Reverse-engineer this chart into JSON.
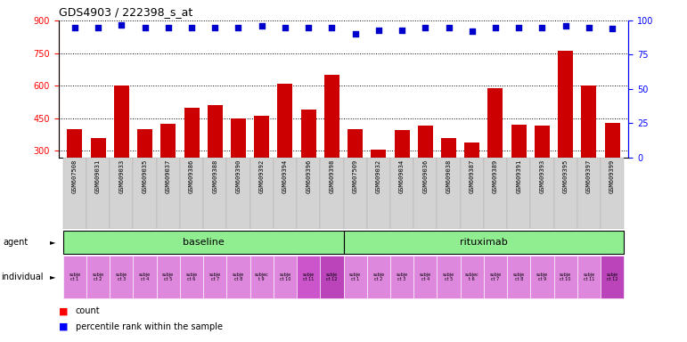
{
  "title": "GDS4903 / 222398_s_at",
  "bar_values": [
    400,
    360,
    600,
    400,
    425,
    500,
    510,
    450,
    460,
    610,
    490,
    650,
    400,
    305,
    395,
    415,
    360,
    340,
    590,
    420,
    415,
    760,
    600,
    430
  ],
  "blue_dot_pct": [
    95,
    95,
    97,
    95,
    95,
    95,
    95,
    95,
    96,
    95,
    95,
    95,
    90,
    93,
    93,
    95,
    95,
    92,
    95,
    95,
    95,
    96,
    95,
    94
  ],
  "gsm_labels": [
    "GSM607508",
    "GSM609031",
    "GSM609033",
    "GSM609035",
    "GSM609037",
    "GSM609386",
    "GSM609388",
    "GSM609390",
    "GSM609392",
    "GSM609394",
    "GSM609396",
    "GSM609398",
    "GSM607509",
    "GSM609032",
    "GSM609034",
    "GSM609036",
    "GSM609038",
    "GSM609387",
    "GSM609389",
    "GSM609391",
    "GSM609393",
    "GSM609395",
    "GSM609397",
    "GSM609399"
  ],
  "individual_labels": [
    "subje\nct 1",
    "subje\nct 2",
    "subje\nct 3",
    "subje\nct 4",
    "subje\nct 5",
    "subje\nct 6",
    "subje\nct 7",
    "subje\nct 8",
    "subjec\nt 9",
    "subje\nct 10",
    "subje\nct 11",
    "subje\nct 12",
    "subje\nct 1",
    "subje\nct 2",
    "subje\nct 3",
    "subje\nct 4",
    "subje\nct 5",
    "subjec\nt 6",
    "subje\nct 7",
    "subje\nct 8",
    "subje\nct 9",
    "subje\nct 10",
    "subje\nct 11",
    "subje\nct 12"
  ],
  "bar_color": "#CC0000",
  "dot_color": "#0000CC",
  "ylim_left": [
    270,
    900
  ],
  "ylim_right": [
    0,
    100
  ],
  "yticks_left": [
    300,
    450,
    600,
    750,
    900
  ],
  "yticks_right": [
    0,
    25,
    50,
    75,
    100
  ],
  "grid_y": [
    300,
    450,
    600,
    750,
    900
  ],
  "background_color": "#ffffff",
  "agent_green": "#90EE90",
  "individual_pink": "#DD88CC",
  "individual_pink2": "#CC55CC",
  "xticklabel_bg": "#d3d3d3"
}
